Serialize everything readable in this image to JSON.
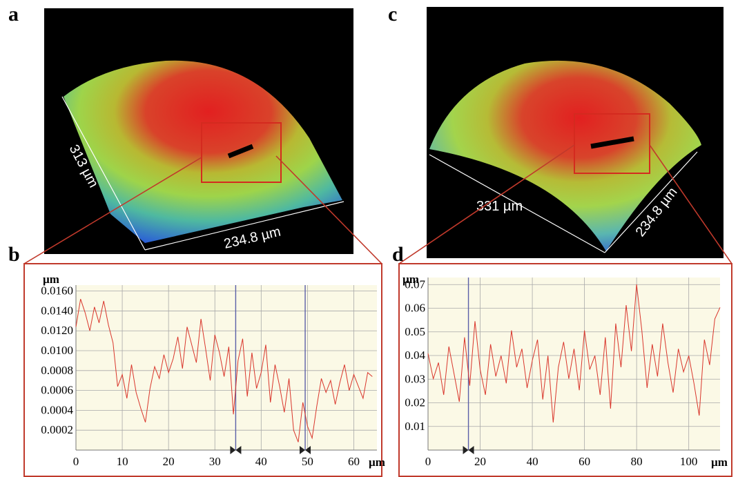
{
  "panels": {
    "a": "a",
    "b": "b",
    "c": "c",
    "d": "d"
  },
  "images": {
    "a": {
      "dim_left": "313 µm",
      "dim_bottom": "234.8  µm"
    },
    "c": {
      "dim_bottom_left": "331  µm",
      "dim_right": "234.8  µm"
    }
  },
  "colors": {
    "frame": "#c0392b",
    "trace": "#d9352b",
    "plot_bg": "#fbf9e6",
    "grid": "#a8a8a8",
    "marker_line": "#5b5fa8"
  },
  "chart_data": [
    {
      "panel": "b",
      "type": "line",
      "ylabel": "µm",
      "xlabel": "µm",
      "xlim": [
        0,
        65
      ],
      "x_ticks": [
        "0",
        "10",
        "20",
        "30",
        "40",
        "50",
        "60"
      ],
      "y_ticks": [
        "0.0002",
        "0.0004",
        "0.0006",
        "0.0008",
        "0.0100",
        "0.0120",
        "0.0140",
        "0.0160"
      ],
      "markers_x": [
        34.5,
        49.5
      ],
      "series": [
        {
          "x": [
            0,
            1,
            2,
            3,
            4,
            5,
            6,
            7,
            8,
            9,
            10,
            11,
            12,
            13,
            14,
            15,
            16,
            17,
            18,
            19,
            20,
            21,
            22,
            23,
            24,
            25,
            26,
            27,
            28,
            29,
            30,
            31,
            32,
            33,
            34,
            35,
            36,
            37,
            38,
            39,
            40,
            41,
            42,
            43,
            44,
            45,
            46,
            47,
            48,
            49,
            50,
            51,
            52,
            53,
            54,
            55,
            56,
            57,
            58,
            59,
            60,
            61,
            62,
            63,
            64
          ],
          "y": [
            6.2,
            7.6,
            6.9,
            6.0,
            7.2,
            6.4,
            7.5,
            6.3,
            5.4,
            3.2,
            3.8,
            2.6,
            4.3,
            2.9,
            2.1,
            1.4,
            3.1,
            4.2,
            3.6,
            4.8,
            3.9,
            4.6,
            5.7,
            4.1,
            6.2,
            5.3,
            4.4,
            6.6,
            5.1,
            3.5,
            5.8,
            4.9,
            3.7,
            5.2,
            1.8,
            4.5,
            5.6,
            2.7,
            4.9,
            3.1,
            3.9,
            5.3,
            2.4,
            4.3,
            3.2,
            1.9,
            3.6,
            1.0,
            0.4,
            2.4,
            1.2,
            0.6,
            2.2,
            3.6,
            2.9,
            3.5,
            2.3,
            3.4,
            4.3,
            3.0,
            3.8,
            3.2,
            2.6,
            3.9,
            3.7
          ]
        }
      ]
    },
    {
      "panel": "d",
      "type": "line",
      "ylabel": "µm",
      "xlabel": "µm",
      "xlim": [
        0,
        112
      ],
      "ylim": [
        0,
        0.075
      ],
      "x_ticks": [
        "0",
        "20",
        "40",
        "60",
        "80",
        "100"
      ],
      "y_ticks": [
        "0.01",
        "0.02",
        "0.03",
        "0.04",
        "0.05",
        "0.06",
        "0.07"
      ],
      "markers_x": [
        15.5
      ],
      "series": [
        {
          "x": [
            0,
            2,
            4,
            6,
            8,
            10,
            12,
            14,
            16,
            18,
            20,
            22,
            24,
            26,
            28,
            30,
            32,
            34,
            36,
            38,
            40,
            42,
            44,
            46,
            48,
            50,
            52,
            54,
            56,
            58,
            60,
            62,
            64,
            66,
            68,
            70,
            72,
            74,
            76,
            78,
            80,
            82,
            84,
            86,
            88,
            90,
            92,
            94,
            96,
            98,
            100,
            102,
            104,
            106,
            108,
            110,
            112
          ],
          "y": [
            0.042,
            0.031,
            0.038,
            0.024,
            0.045,
            0.033,
            0.021,
            0.049,
            0.028,
            0.056,
            0.035,
            0.024,
            0.046,
            0.032,
            0.041,
            0.029,
            0.052,
            0.036,
            0.044,
            0.027,
            0.039,
            0.048,
            0.022,
            0.041,
            0.012,
            0.036,
            0.047,
            0.031,
            0.044,
            0.026,
            0.052,
            0.035,
            0.041,
            0.024,
            0.049,
            0.018,
            0.055,
            0.036,
            0.063,
            0.043,
            0.072,
            0.052,
            0.027,
            0.046,
            0.032,
            0.055,
            0.038,
            0.025,
            0.044,
            0.034,
            0.041,
            0.029,
            0.015,
            0.048,
            0.037,
            0.057,
            0.062
          ]
        }
      ]
    }
  ]
}
